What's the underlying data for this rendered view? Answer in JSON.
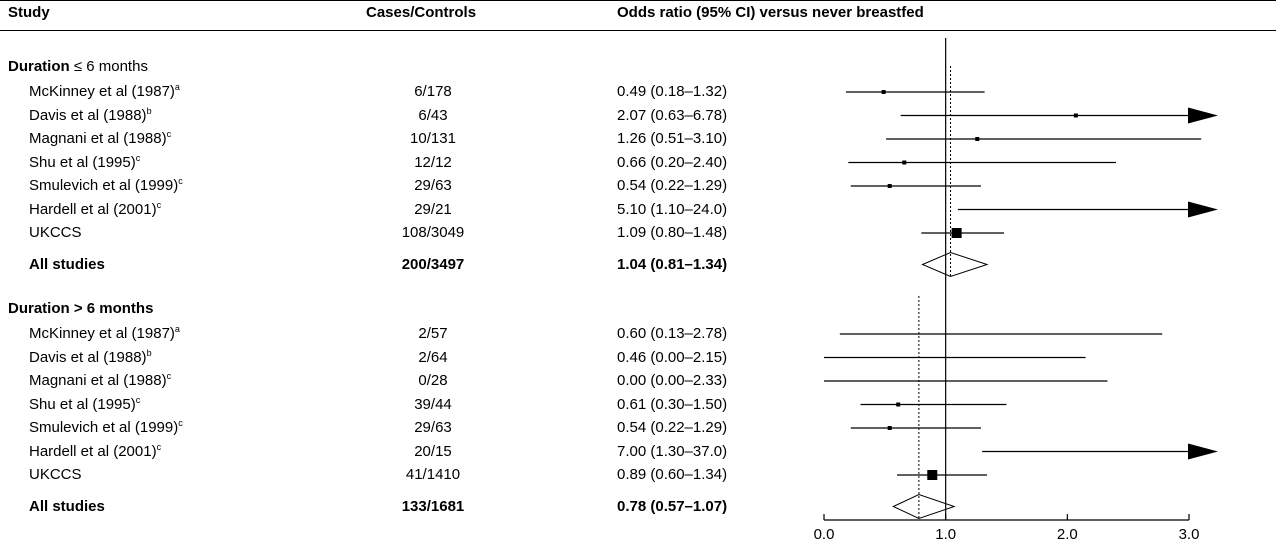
{
  "header": {
    "study": "Study",
    "cases_controls": "Cases/Controls",
    "odds_ratio": "Odds ratio (95% CI) versus never breastfed"
  },
  "chart_data": {
    "type": "forest",
    "xlim": [
      0.0,
      3.0
    ],
    "x_ticks": [
      "0.0",
      "1.0",
      "2.0",
      "3.0"
    ],
    "reference_line": 1.0,
    "groups": [
      {
        "label": "Duration",
        "label_op": "≤ 6 months",
        "pooled_or": 1.04,
        "rows": [
          {
            "study": "McKinney et al (1987)",
            "sup": "a",
            "cases": "6/178",
            "ci_text": "0.49 (0.18–1.32)",
            "or": 0.49,
            "lo": 0.18,
            "hi": 1.32
          },
          {
            "study": "Davis et al (1988)",
            "sup": "b",
            "cases": "6/43",
            "ci_text": "2.07 (0.63–6.78)",
            "or": 2.07,
            "lo": 0.63,
            "hi": 6.78
          },
          {
            "study": "Magnani et al (1988)",
            "sup": "c",
            "cases": "10/131",
            "ci_text": "1.26 (0.51–3.10)",
            "or": 1.26,
            "lo": 0.51,
            "hi": 3.1
          },
          {
            "study": "Shu et al (1995)",
            "sup": "c",
            "cases": "12/12",
            "ci_text": "0.66 (0.20–2.40)",
            "or": 0.66,
            "lo": 0.2,
            "hi": 2.4
          },
          {
            "study": "Smulevich et al (1999)",
            "sup": "c",
            "cases": "29/63",
            "ci_text": "0.54 (0.22–1.29)",
            "or": 0.54,
            "lo": 0.22,
            "hi": 1.29
          },
          {
            "study": "Hardell et al (2001)",
            "sup": "c",
            "cases": "29/21",
            "ci_text": "5.10 (1.10–24.0)",
            "or": 5.1,
            "lo": 1.1,
            "hi": 24.0
          },
          {
            "study": "UKCCS",
            "sup": "",
            "cases": "108/3049",
            "ci_text": "1.09 (0.80–1.48)",
            "or": 1.09,
            "lo": 0.8,
            "hi": 1.48,
            "big": true
          }
        ],
        "summary": {
          "study": "All studies",
          "cases": "200/3497",
          "ci_text": "1.04 (0.81–1.34)",
          "or": 1.04,
          "lo": 0.81,
          "hi": 1.34
        }
      },
      {
        "label": "Duration > 6 months",
        "label_op": "",
        "pooled_or": 0.78,
        "rows": [
          {
            "study": "McKinney et al (1987)",
            "sup": "a",
            "cases": "2/57",
            "ci_text": "0.60 (0.13–2.78)",
            "or": 0.6,
            "lo": 0.13,
            "hi": 2.78,
            "no_marker": true
          },
          {
            "study": "Davis et al (1988)",
            "sup": "b",
            "cases": "2/64",
            "ci_text": "0.46 (0.00–2.15)",
            "or": 0.46,
            "lo": 0.0,
            "hi": 2.15,
            "no_marker": true
          },
          {
            "study": "Magnani et al (1988)",
            "sup": "c",
            "cases": "0/28",
            "ci_text": "0.00 (0.00–2.33)",
            "or": 0.0,
            "lo": 0.0,
            "hi": 2.33,
            "no_marker": true
          },
          {
            "study": "Shu et al (1995)",
            "sup": "c",
            "cases": "39/44",
            "ci_text": "0.61 (0.30–1.50)",
            "or": 0.61,
            "lo": 0.3,
            "hi": 1.5
          },
          {
            "study": "Smulevich et al (1999)",
            "sup": "c",
            "cases": "29/63",
            "ci_text": "0.54 (0.22–1.29)",
            "or": 0.54,
            "lo": 0.22,
            "hi": 1.29
          },
          {
            "study": "Hardell et al (2001)",
            "sup": "c",
            "cases": "20/15",
            "ci_text": "7.00 (1.30–37.0)",
            "or": 7.0,
            "lo": 1.3,
            "hi": 37.0,
            "no_marker": true
          },
          {
            "study": "UKCCS",
            "sup": "",
            "cases": "41/1410",
            "ci_text": "0.89 (0.60–1.34)",
            "or": 0.89,
            "lo": 0.6,
            "hi": 1.34,
            "big": true
          }
        ],
        "summary": {
          "study": "All studies",
          "cases": "133/1681",
          "ci_text": "0.78 (0.57–1.07)",
          "or": 0.78,
          "lo": 0.57,
          "hi": 1.07
        }
      }
    ]
  }
}
